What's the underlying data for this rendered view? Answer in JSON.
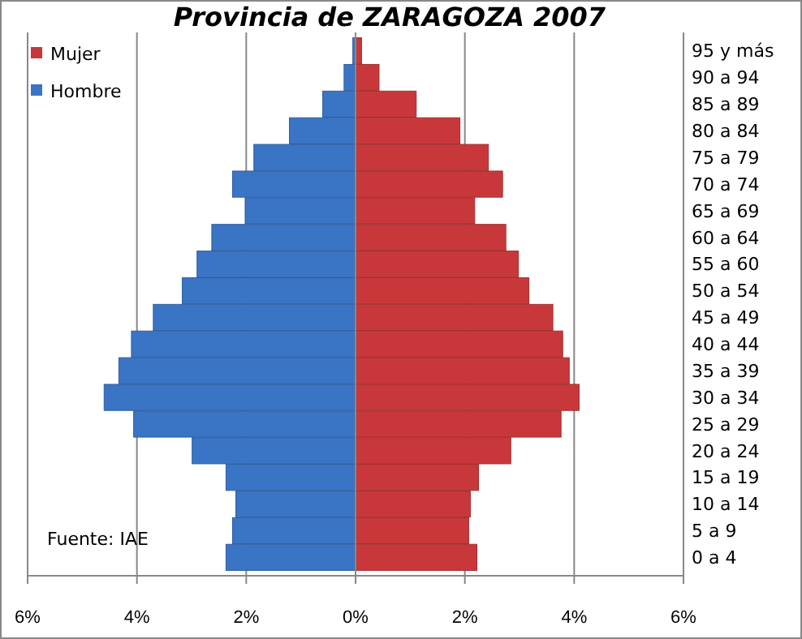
{
  "chart_data": {
    "type": "bar",
    "orientation": "horizontal",
    "title": "Provincia de ZARAGOZA 2007",
    "categories": [
      "95 y más",
      "90 a 94",
      "85 a 89",
      "80 a 84",
      "75 a 79",
      "70 a 74",
      "65 a 69",
      "60 a 64",
      "55 a 60",
      "50 a 54",
      "45 a 49",
      "40 a 44",
      "35 a 39",
      "30 a 34",
      "25 a 29",
      "20 a 24",
      "15 a 19",
      "10 a 14",
      "5 a 9",
      "0 a 4"
    ],
    "series": [
      {
        "name": "Mujer",
        "color": "#c8383a",
        "values": [
          0.11,
          0.43,
          1.11,
          1.91,
          2.43,
          2.69,
          2.18,
          2.75,
          2.98,
          3.17,
          3.61,
          3.79,
          3.91,
          4.09,
          3.76,
          2.84,
          2.25,
          2.1,
          2.07,
          2.22
        ]
      },
      {
        "name": "Hombre",
        "color": "#3a74c4",
        "values": [
          -0.05,
          -0.21,
          -0.6,
          -1.21,
          -1.86,
          -2.25,
          -2.02,
          -2.63,
          -2.9,
          -3.17,
          -3.7,
          -4.1,
          -4.33,
          -4.6,
          -4.06,
          -2.99,
          -2.37,
          -2.19,
          -2.25,
          -2.37
        ]
      }
    ],
    "xlim": [
      -6,
      6
    ],
    "xticks": [
      {
        "value": -6,
        "label": "6%"
      },
      {
        "value": -4,
        "label": "4%"
      },
      {
        "value": -2,
        "label": "2%"
      },
      {
        "value": 0,
        "label": "0%"
      },
      {
        "value": 2,
        "label": "2%"
      },
      {
        "value": 4,
        "label": "4%"
      },
      {
        "value": 6,
        "label": "6%"
      }
    ],
    "stacked": true,
    "grid": "x",
    "legend": "top left",
    "annotations": [
      "Fuente: IAE"
    ]
  }
}
